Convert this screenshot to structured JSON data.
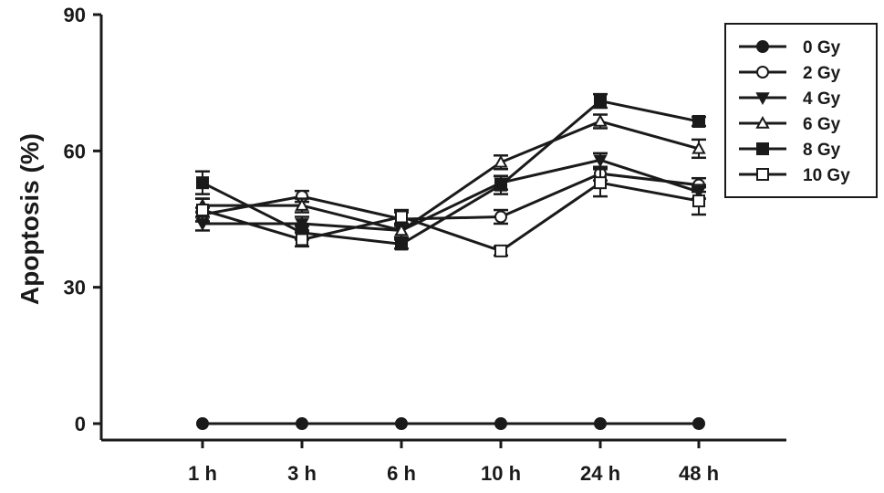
{
  "chart_data": {
    "type": "line",
    "ylabel": "Apoptosis (%)",
    "xlabel": "",
    "categories": [
      "1 h",
      "3 h",
      "6 h",
      "10 h",
      "24 h",
      "48 h"
    ],
    "ylim": [
      0,
      90
    ],
    "yticks": [
      0,
      30,
      60,
      90
    ],
    "legend_position": "top-right",
    "grid": false,
    "series": [
      {
        "name": "0 Gy",
        "marker": "circle-filled",
        "values": [
          0,
          0,
          0,
          0,
          0,
          0
        ],
        "errors": [
          0,
          0,
          0,
          0,
          0,
          0
        ]
      },
      {
        "name": "2 Gy",
        "marker": "circle-open",
        "values": [
          46,
          50,
          45,
          45.5,
          55,
          52.5
        ],
        "errors": [
          1.5,
          1.2,
          1.5,
          1.5,
          1.5,
          1.5
        ]
      },
      {
        "name": "4 Gy",
        "marker": "triangle-down",
        "values": [
          44,
          44,
          42.5,
          53,
          58,
          51
        ],
        "errors": [
          1.5,
          1.5,
          1.5,
          1.5,
          1.5,
          1.5
        ]
      },
      {
        "name": "6 Gy",
        "marker": "triangle-open",
        "values": [
          48,
          48,
          42.5,
          57.5,
          66.5,
          60.5
        ],
        "errors": [
          1.5,
          1.5,
          1.5,
          1.5,
          1.5,
          2
        ]
      },
      {
        "name": "8 Gy",
        "marker": "square-filled",
        "values": [
          53,
          42,
          39.5,
          52.5,
          71,
          66.5
        ],
        "errors": [
          2.5,
          1.5,
          1,
          2,
          1.5,
          1
        ]
      },
      {
        "name": "10 Gy",
        "marker": "square-open",
        "values": [
          47,
          40.5,
          45.5,
          38,
          53,
          49
        ],
        "errors": [
          2.5,
          1.5,
          1.5,
          1,
          3,
          3
        ]
      }
    ]
  }
}
